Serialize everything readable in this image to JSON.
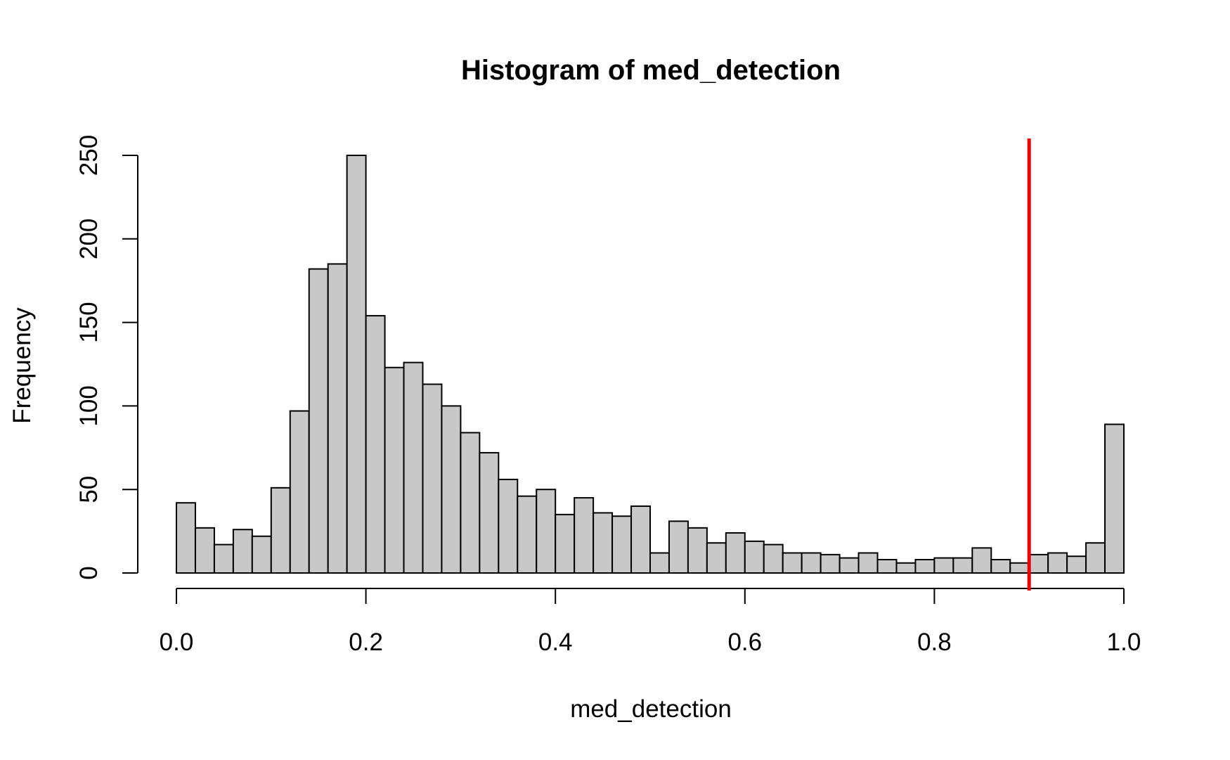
{
  "chart_data": {
    "type": "histogram",
    "title": "Histogram of med_detection",
    "xlabel": "med_detection",
    "ylabel": "Frequency",
    "bin_width": 0.02,
    "bin_start": 0.0,
    "counts": [
      42,
      27,
      17,
      26,
      22,
      51,
      97,
      182,
      185,
      250,
      154,
      123,
      126,
      113,
      100,
      84,
      72,
      56,
      46,
      50,
      35,
      45,
      36,
      34,
      40,
      12,
      31,
      27,
      18,
      24,
      19,
      17,
      12,
      12,
      11,
      9,
      12,
      8,
      6,
      8,
      9,
      9,
      15,
      8,
      6,
      11,
      12,
      10,
      18,
      89
    ],
    "xlim": [
      0,
      1
    ],
    "ylim": [
      0,
      250
    ],
    "x_ticks": [
      0.0,
      0.2,
      0.4,
      0.6,
      0.8,
      1.0
    ],
    "x_tick_labels": [
      "0.0",
      "0.2",
      "0.4",
      "0.6",
      "0.8",
      "1.0"
    ],
    "y_ticks": [
      0,
      50,
      100,
      150,
      200,
      250
    ],
    "y_tick_labels": [
      "0",
      "50",
      "100",
      "150",
      "200",
      "250"
    ],
    "reference_line": {
      "x": 0.9,
      "color": "#ee0000"
    },
    "bar_color": "#c8c8c8",
    "grid": false
  }
}
